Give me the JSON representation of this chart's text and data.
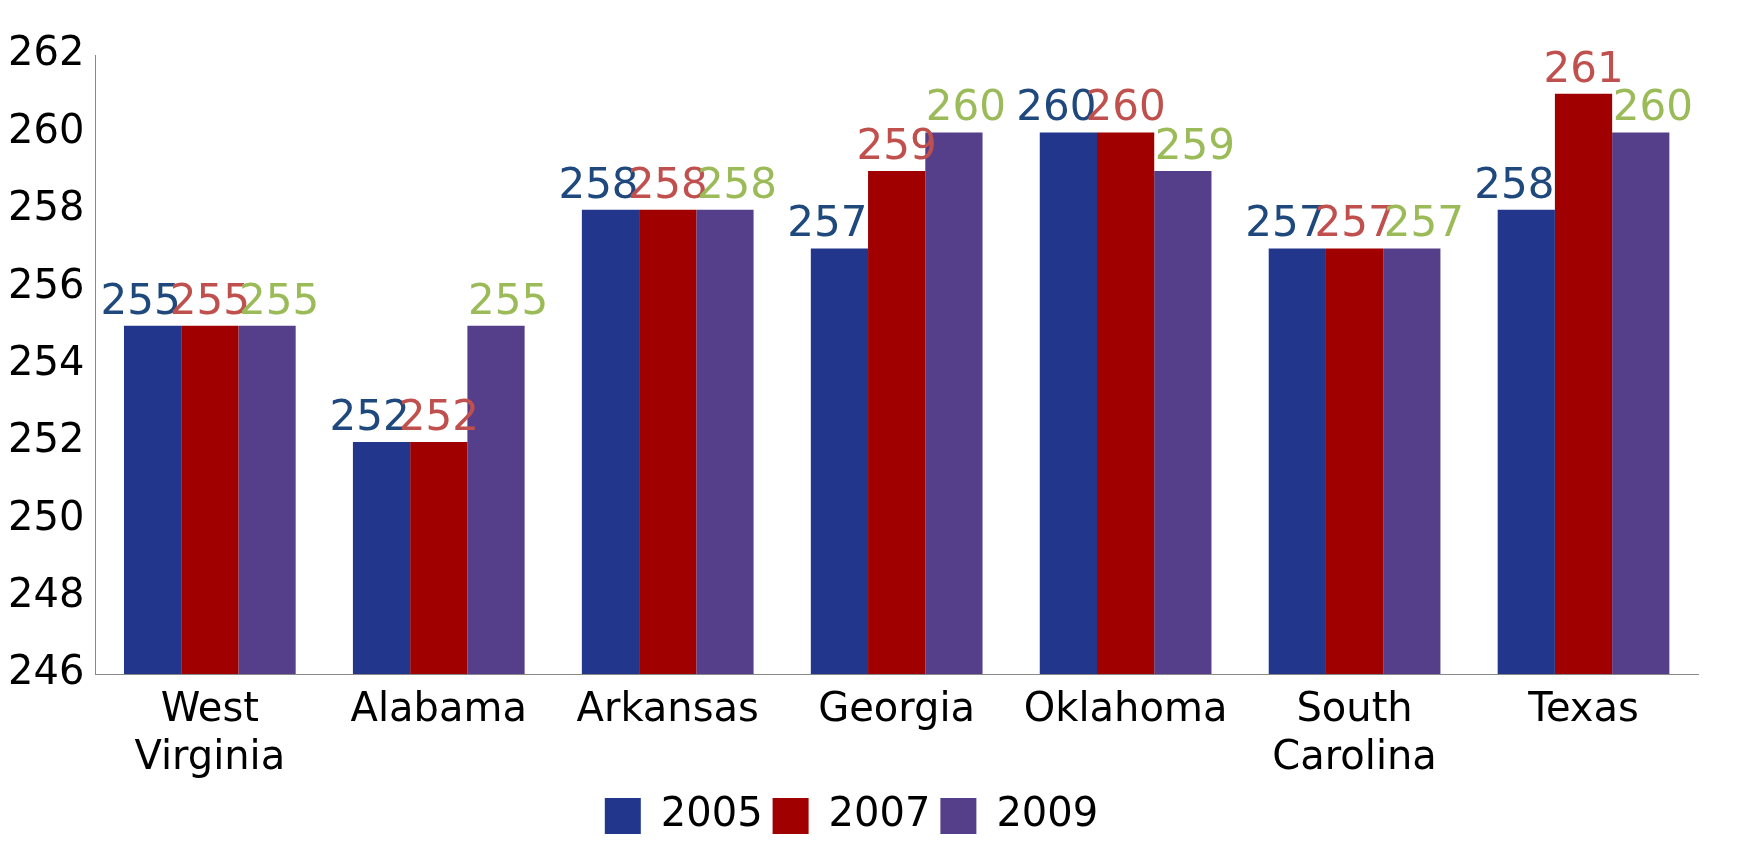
{
  "chart_data": {
    "type": "bar",
    "categories": [
      "West Virginia",
      "Alabama",
      "Arkansas",
      "Georgia",
      "Oklahoma",
      "South Carolina",
      "Texas"
    ],
    "series": [
      {
        "name": "2005",
        "color": "#22368c",
        "values": [
          255,
          252,
          258,
          257,
          260,
          257,
          258
        ]
      },
      {
        "name": "2007",
        "color": "#a00000",
        "values": [
          255,
          252,
          258,
          259,
          260,
          257,
          261
        ]
      },
      {
        "name": "2009",
        "color": "#553f8a",
        "values": [
          255,
          255,
          258,
          260,
          259,
          257,
          260
        ]
      }
    ],
    "ylim": [
      246,
      262
    ],
    "yticks": [
      246,
      248,
      250,
      252,
      254,
      256,
      258,
      260,
      262
    ],
    "data_labels": true,
    "legend": "bottom",
    "grid": false
  }
}
